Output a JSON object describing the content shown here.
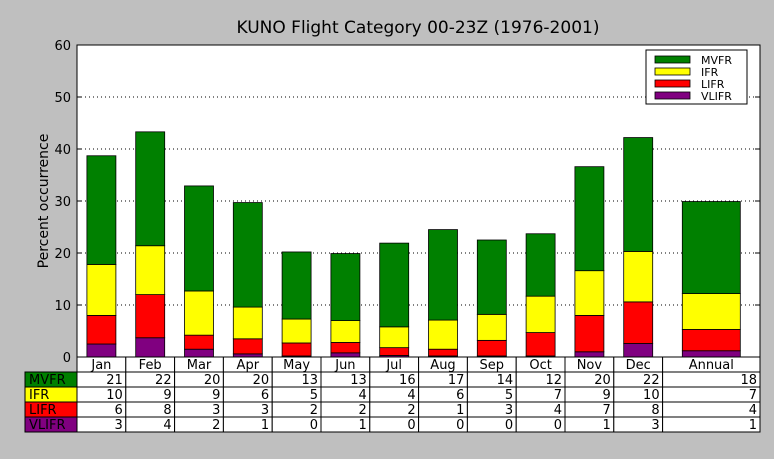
{
  "chart_data": {
    "type": "bar",
    "stacked": true,
    "title": "KUNO Flight Category 00-23Z (1976-2001)",
    "ylabel": "Percent occurrence",
    "xlabel": "",
    "ylim": [
      0,
      60
    ],
    "yticks": [
      0,
      10,
      20,
      30,
      40,
      50,
      60
    ],
    "grid": "y-dotted",
    "legend_position": "top-right",
    "categories": [
      "Jan",
      "Feb",
      "Mar",
      "Apr",
      "May",
      "Jun",
      "Jul",
      "Aug",
      "Sep",
      "Oct",
      "Nov",
      "Dec",
      "Annual"
    ],
    "series": [
      {
        "name": "VLIFR",
        "color": "#800080",
        "values": [
          2.5,
          3.7,
          1.5,
          0.6,
          0.2,
          0.8,
          0.3,
          0.2,
          0.2,
          0.2,
          1.0,
          2.6,
          1.2
        ]
      },
      {
        "name": "LIFR",
        "color": "#ff0000",
        "values": [
          5.5,
          8.3,
          2.7,
          2.9,
          2.5,
          2.0,
          1.5,
          1.3,
          3.0,
          4.5,
          7.0,
          8.0,
          4.1
        ]
      },
      {
        "name": "IFR",
        "color": "#ffff00",
        "values": [
          9.8,
          9.4,
          8.5,
          6.1,
          4.6,
          4.2,
          4.0,
          5.6,
          5.0,
          7.0,
          8.6,
          9.7,
          6.9
        ]
      },
      {
        "name": "MVFR",
        "color": "#008000",
        "values": [
          20.9,
          21.9,
          20.2,
          20.1,
          12.9,
          12.9,
          16.1,
          17.4,
          14.3,
          12.0,
          20.0,
          21.9,
          17.7
        ]
      }
    ],
    "table": {
      "rows": [
        {
          "label": "MVFR",
          "color": "#008000",
          "values": [
            "21",
            "22",
            "20",
            "20",
            "13",
            "13",
            "16",
            "17",
            "14",
            "12",
            "20",
            "22",
            "18"
          ]
        },
        {
          "label": "IFR",
          "color": "#ffff00",
          "values": [
            "10",
            "9",
            "9",
            "6",
            "5",
            "4",
            "4",
            "6",
            "5",
            "7",
            "9",
            "10",
            "7"
          ]
        },
        {
          "label": "LIFR",
          "color": "#ff0000",
          "values": [
            "6",
            "8",
            "3",
            "3",
            "2",
            "2",
            "2",
            "1",
            "3",
            "4",
            "7",
            "8",
            "4"
          ]
        },
        {
          "label": "VLIFR",
          "color": "#800080",
          "values": [
            "3",
            "4",
            "2",
            "1",
            "0",
            "1",
            "0",
            "0",
            "0",
            "0",
            "1",
            "3",
            "1"
          ]
        }
      ]
    },
    "legend": [
      "MVFR",
      "IFR",
      "LIFR",
      "VLIFR"
    ]
  }
}
